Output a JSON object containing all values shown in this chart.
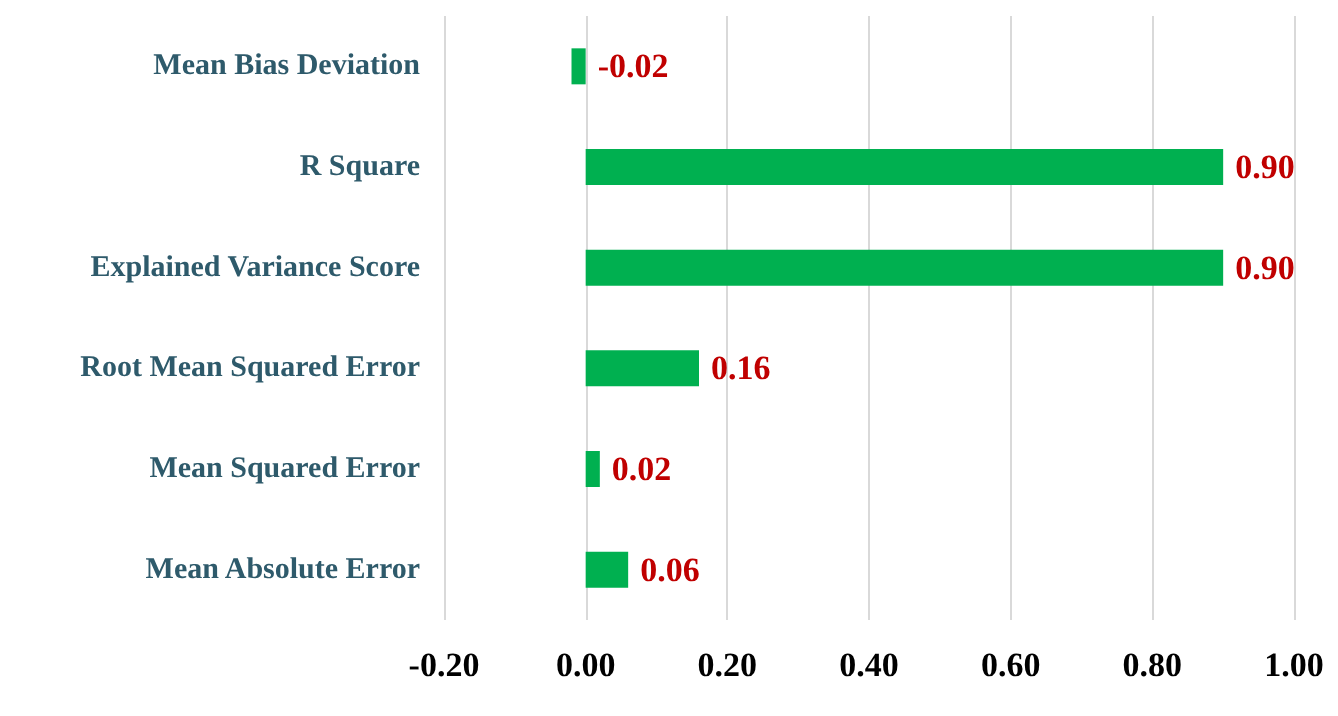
{
  "chart_data": {
    "type": "bar",
    "orientation": "horizontal",
    "categories": [
      "Mean Bias Deviation",
      "R Square",
      "Explained Variance Score",
      "Root Mean Squared Error",
      "Mean Squared Error",
      "Mean Absolute Error"
    ],
    "values": [
      -0.02,
      0.9,
      0.9,
      0.16,
      0.02,
      0.06
    ],
    "value_labels": [
      "-0.02",
      "0.90",
      "0.90",
      "0.16",
      "0.02",
      "0.06"
    ],
    "color": "#00b050",
    "xlim": [
      -0.2,
      1.0
    ],
    "xticks": [
      {
        "value": -0.2,
        "label": "-0.20"
      },
      {
        "value": 0,
        "label": "0.00"
      },
      {
        "value": 0.2,
        "label": "0.20"
      },
      {
        "value": 0.4,
        "label": "0.40"
      },
      {
        "value": 0.6,
        "label": "0.60"
      },
      {
        "value": 0.8,
        "label": "0.80"
      },
      {
        "value": 1.0,
        "label": "1.00"
      }
    ],
    "grid": "x"
  }
}
